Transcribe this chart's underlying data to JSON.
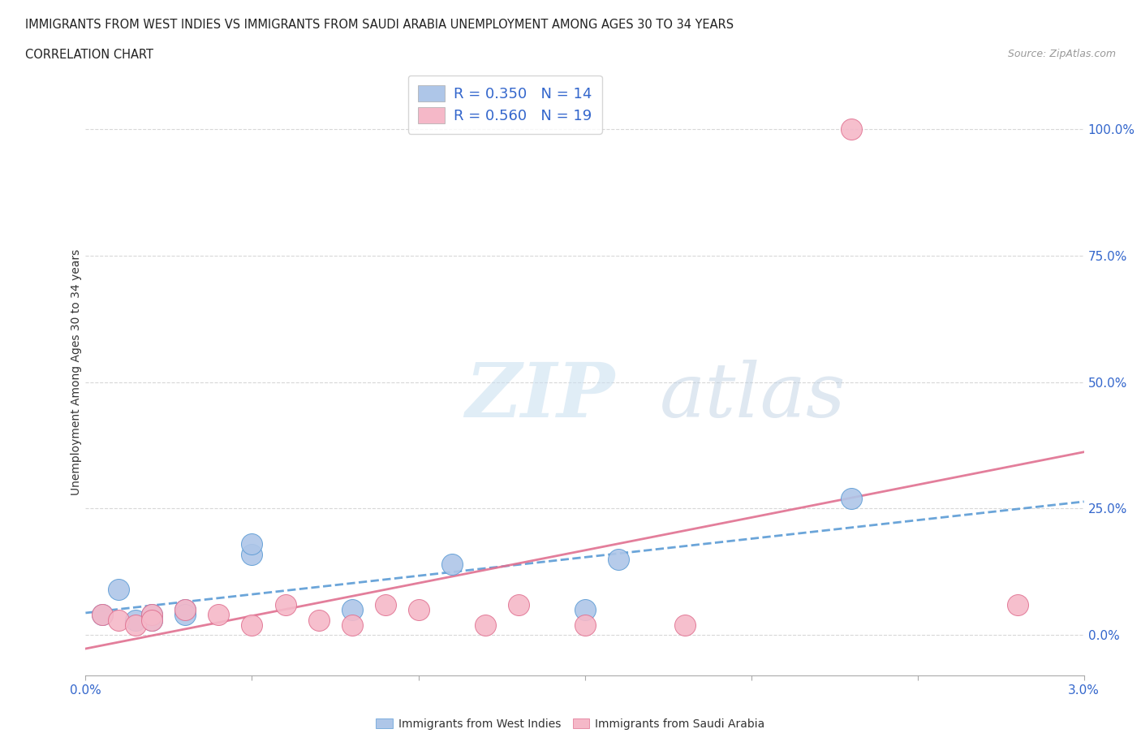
{
  "title_line1": "IMMIGRANTS FROM WEST INDIES VS IMMIGRANTS FROM SAUDI ARABIA UNEMPLOYMENT AMONG AGES 30 TO 34 YEARS",
  "title_line2": "CORRELATION CHART",
  "source_text": "Source: ZipAtlas.com",
  "ylabel": "Unemployment Among Ages 30 to 34 years",
  "xlim": [
    0.0,
    0.03
  ],
  "ylim": [
    -0.08,
    1.12
  ],
  "right_yticks": [
    0.0,
    0.25,
    0.5,
    0.75,
    1.0
  ],
  "right_yticklabels": [
    "0.0%",
    "25.0%",
    "50.0%",
    "75.0%",
    "100.0%"
  ],
  "xticks": [
    0.0,
    0.005,
    0.01,
    0.015,
    0.02,
    0.025,
    0.03
  ],
  "xticklabels": [
    "0.0%",
    "",
    "",
    "",
    "",
    "",
    "3.0%"
  ],
  "watermark_zip": "ZIP",
  "watermark_atlas": "atlas",
  "legend1_label": "R = 0.350   N = 14",
  "legend2_label": "R = 0.560   N = 19",
  "color_blue": "#aec6e8",
  "color_pink": "#f5b8c8",
  "color_blue_line": "#5b9bd5",
  "color_pink_line": "#e07090",
  "grid_color": "#d8d8d8",
  "background_color": "#ffffff",
  "west_indies_x": [
    0.0005,
    0.001,
    0.0015,
    0.002,
    0.002,
    0.003,
    0.003,
    0.005,
    0.005,
    0.008,
    0.011,
    0.015,
    0.016,
    0.023
  ],
  "west_indies_y": [
    0.04,
    0.09,
    0.03,
    0.04,
    0.03,
    0.05,
    0.04,
    0.16,
    0.18,
    0.05,
    0.14,
    0.05,
    0.15,
    0.27
  ],
  "saudi_x": [
    0.0005,
    0.001,
    0.0015,
    0.002,
    0.002,
    0.003,
    0.004,
    0.005,
    0.006,
    0.007,
    0.008,
    0.009,
    0.01,
    0.012,
    0.013,
    0.015,
    0.018,
    0.023,
    0.028
  ],
  "saudi_y": [
    0.04,
    0.03,
    0.02,
    0.04,
    0.03,
    0.05,
    0.04,
    0.02,
    0.06,
    0.03,
    0.02,
    0.06,
    0.05,
    0.02,
    0.06,
    0.02,
    0.02,
    1.0,
    0.06
  ],
  "legend_items": [
    {
      "label": "Immigrants from West Indies",
      "color": "#aec6e8"
    },
    {
      "label": "Immigrants from Saudi Arabia",
      "color": "#f5b8c8"
    }
  ]
}
